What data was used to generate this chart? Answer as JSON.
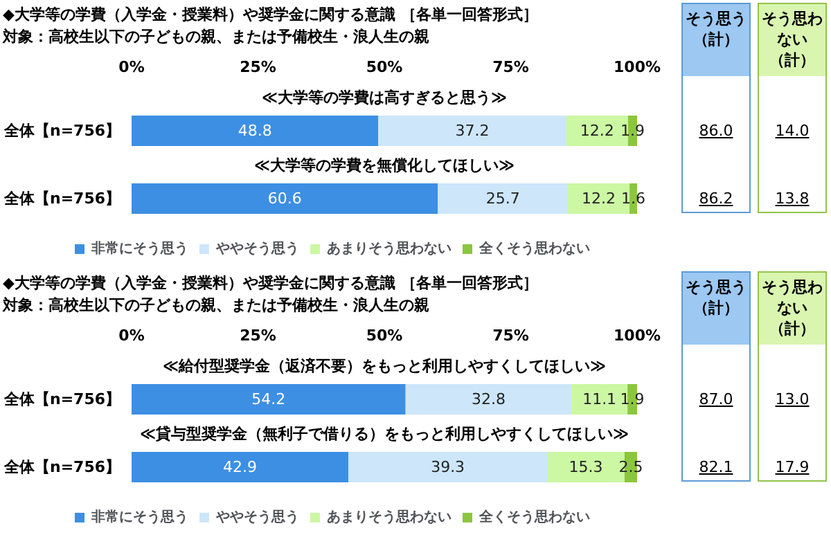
{
  "chart_data": [
    {
      "type": "bar",
      "orientation": "horizontal",
      "stacked": true,
      "data_labels": true,
      "legend": "bottom",
      "title": "◆大学等の学費（入学金・授業料）や奨学金に関する意識 ［各単一回答形式］",
      "subtitle": "対象：高校生以下の子どもの親、または予備校生・浪人生の親",
      "categories": [
        "全体【n=756】",
        "全体【n=756】"
      ],
      "xlim": [
        0,
        100
      ],
      "xticks": [
        {
          "value": 0,
          "label": "0%"
        },
        {
          "value": 25,
          "label": "25%"
        },
        {
          "value": 50,
          "label": "50%"
        },
        {
          "value": 75,
          "label": "75%"
        },
        {
          "value": 100,
          "label": "100%"
        }
      ],
      "series": [
        {
          "name": "非常にそう思う",
          "color": "#3c8fe3",
          "values": [
            48.8,
            60.6
          ]
        },
        {
          "name": "ややそう思う",
          "color": "#cde6fa",
          "values": [
            37.2,
            25.7
          ]
        },
        {
          "name": "あまりそう思わない",
          "color": "#ccf7a3",
          "values": [
            12.2,
            12.2
          ]
        },
        {
          "name": "全くそう思わない",
          "color": "#8cc63f",
          "values": [
            1.9,
            1.6
          ]
        }
      ],
      "annotations": [
        "≪大学等の学費は高すぎると思う≫",
        "≪大学等の学費を無償化してほしい≫",
        "そう思う（計）",
        "86.0",
        "86.2",
        "そう思わない（計）",
        "14.0",
        "13.8"
      ]
    },
    {
      "type": "bar",
      "orientation": "horizontal",
      "stacked": true,
      "data_labels": true,
      "legend": "bottom",
      "title": "◆大学等の学費（入学金・授業料）や奨学金に関する意識 ［各単一回答形式］",
      "subtitle": "対象：高校生以下の子どもの親、または予備校生・浪人生の親",
      "categories": [
        "全体【n=756】",
        "全体【n=756】"
      ],
      "xlim": [
        0,
        100
      ],
      "xticks": [
        {
          "value": 0,
          "label": "0%"
        },
        {
          "value": 25,
          "label": "25%"
        },
        {
          "value": 50,
          "label": "50%"
        },
        {
          "value": 75,
          "label": "75%"
        },
        {
          "value": 100,
          "label": "100%"
        }
      ],
      "series": [
        {
          "name": "非常にそう思う",
          "color": "#3c8fe3",
          "values": [
            54.2,
            42.9
          ]
        },
        {
          "name": "ややそう思う",
          "color": "#cde6fa",
          "values": [
            32.8,
            39.3
          ]
        },
        {
          "name": "あまりそう思わない",
          "color": "#ccf7a3",
          "values": [
            11.1,
            15.3
          ]
        },
        {
          "name": "全くそう思わない",
          "color": "#8cc63f",
          "values": [
            1.9,
            2.5
          ]
        }
      ],
      "annotations": [
        "≪給付型奨学金（返済不要）をもっと利用しやすくしてほしい≫",
        "≪貸与型奨学金（無利子で借りる）をもっと利用しやすくしてほしい≫",
        "そう思う（計）",
        "87.0",
        "82.1",
        "そう思わない（計）",
        "13.0",
        "17.9"
      ]
    }
  ]
}
